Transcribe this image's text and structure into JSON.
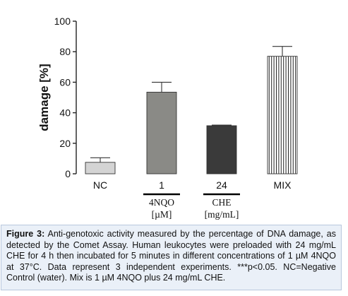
{
  "chart_data": {
    "type": "bar",
    "ylabel": "damage [%]",
    "ylim": [
      0,
      100
    ],
    "yticks": [
      "0",
      "20",
      "40",
      "60",
      "80",
      "100"
    ],
    "categories": [
      "NC",
      "1",
      "24",
      "MIX"
    ],
    "values": [
      7.5,
      53.5,
      31.5,
      77
    ],
    "errors": [
      3.0,
      6.5,
      0.4,
      6.5
    ],
    "fills": [
      "#d4d4d4",
      "#8a8a86",
      "#3a3a3a",
      "hatch"
    ],
    "group_labels": [
      {
        "lines": [
          "4NQO",
          "[µM]"
        ]
      },
      {
        "lines": [
          "CHE",
          "[mg/mL]"
        ]
      }
    ]
  },
  "caption": {
    "label": "Figure 3:",
    "text": " Anti-genotoxic activity measured by the percentage of DNA damage, as detected by the Comet Assay. Human leukocytes were preloaded with 24 mg/mL CHE for 4 h then incubated for 5 minutes in different concentrations of 1 µM 4NQO at 37°C. Data represent 3 independent experiments. ***p<0.05. NC=Negative Control (water). Mix is 1 µM 4NQO plus 24 mg/mL CHE."
  }
}
